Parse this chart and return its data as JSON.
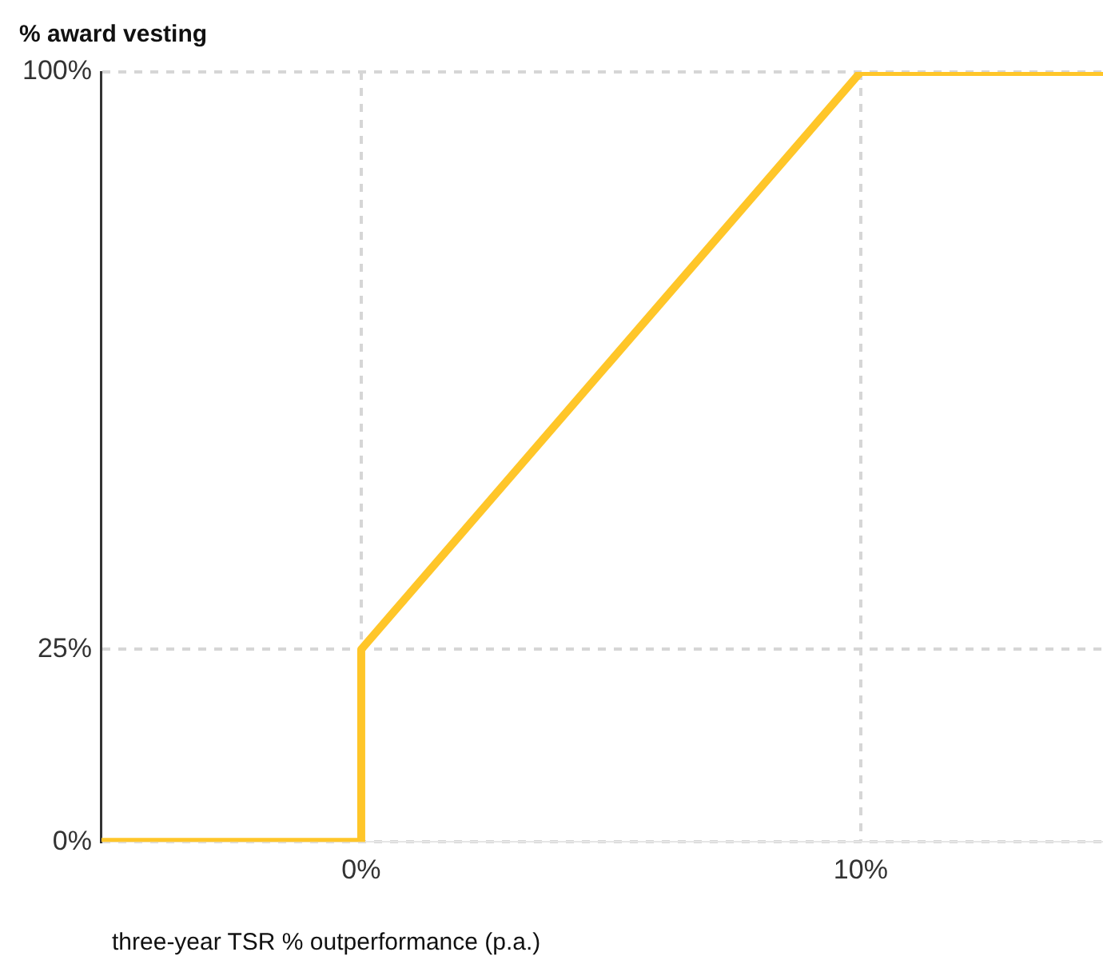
{
  "chart_data": {
    "type": "line",
    "ylabel": "% award vesting",
    "xlabel": "three-year TSR % outperformance (p.a.)",
    "x": [
      -5.2,
      0,
      0,
      10,
      14.85
    ],
    "series": [
      {
        "color": "#ffc629",
        "values": [
          0,
          0,
          25,
          100,
          100
        ]
      }
    ],
    "xlim": [
      -5.2,
      14.85
    ],
    "xticks": [
      {
        "value": 0,
        "label": "0%"
      },
      {
        "value": 10,
        "label": "10%"
      }
    ],
    "ylim": [
      0,
      100
    ],
    "yticks": [
      {
        "value": 0,
        "label": "0%"
      },
      {
        "value": 25,
        "label": "25%"
      },
      {
        "value": 100,
        "label": "100%"
      }
    ],
    "grid": true,
    "legend": false,
    "marker": "none",
    "line_style": "solid"
  }
}
